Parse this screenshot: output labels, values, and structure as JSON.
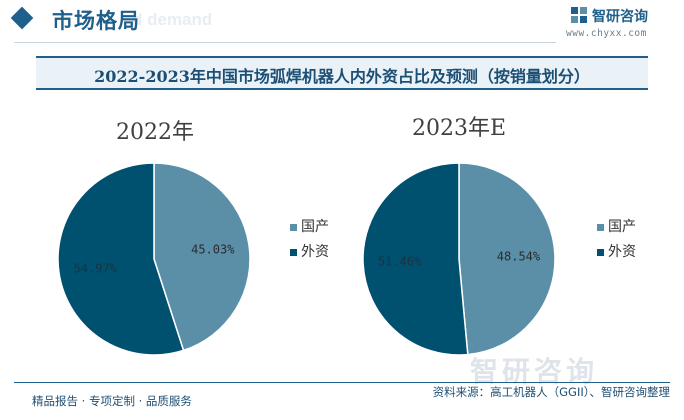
{
  "header": {
    "section_title": "市场格局",
    "section_sub": "d demand",
    "logo_name": "智研咨询",
    "logo_url": "www.chyxx.com"
  },
  "colors": {
    "domestic": "#5b8fa8",
    "foreign": "#005070",
    "accent": "#1f5f8b"
  },
  "chart_title": "2022-2023年中国市场弧焊机器人内外资占比及预测（按销量划分）",
  "chart_data": [
    {
      "type": "pie",
      "title": "2022年",
      "slices": [
        {
          "name": "国产",
          "value": 45.03,
          "label": "45.03%"
        },
        {
          "name": "外资",
          "value": 54.97,
          "label": "54.97%"
        }
      ],
      "legend": [
        "国产",
        "外资"
      ],
      "legend_position": "right"
    },
    {
      "type": "pie",
      "title": "2023年E",
      "slices": [
        {
          "name": "国产",
          "value": 48.54,
          "label": "48.54%"
        },
        {
          "name": "外资",
          "value": 51.46,
          "label": "51.46%"
        }
      ],
      "legend": [
        "国产",
        "外资"
      ],
      "legend_position": "right"
    }
  ],
  "footer": {
    "left": "精品报告 · 专项定制 · 品质服务",
    "right": "资料来源：高工机器人（GGII）、智研咨询整理"
  },
  "watermark": "智研咨询"
}
